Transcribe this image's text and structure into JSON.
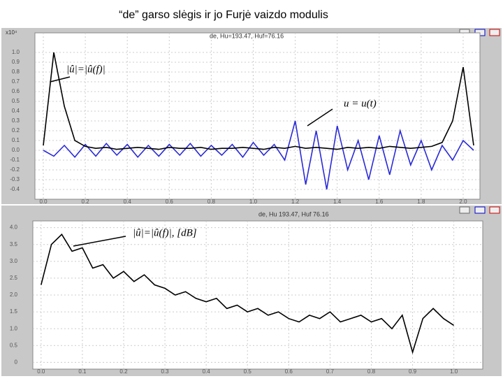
{
  "title": "“de” garso slėgis ir jo Furjė vaizdo modulis",
  "chart_data": [
    {
      "type": "line",
      "window_title": "de, Hu=193.47, Huf=76.16",
      "y_multiplier": "x10⁴",
      "annotations": [
        {
          "text": "|û|=|û(f)|"
        },
        {
          "text": "u = u(t)"
        }
      ],
      "grid": true,
      "xlim": [
        -0.04,
        2.08
      ],
      "ylim": [
        -0.5,
        1.2
      ],
      "xticks": [
        {
          "value": 0,
          "label": "0.0"
        },
        0.2,
        0.4,
        0.6,
        0.8,
        {
          "value": 1,
          "label": "1.0"
        },
        1.2,
        1.4,
        1.6,
        1.8,
        {
          "value": 2,
          "label": "2.0"
        }
      ],
      "yticks": [
        -0.4,
        -0.3,
        -0.2,
        -0.1,
        {
          "value": 0,
          "label": "0.0"
        },
        0.1,
        0.2,
        0.3,
        0.4,
        0.5,
        0.6,
        0.7,
        0.8,
        0.9,
        {
          "value": 1,
          "label": "1.0"
        }
      ],
      "x": [
        0,
        0.05,
        0.1,
        0.15,
        0.2,
        0.25,
        0.3,
        0.35,
        0.4,
        0.45,
        0.5,
        0.55,
        0.6,
        0.65,
        0.7,
        0.75,
        0.8,
        0.85,
        0.9,
        0.95,
        1,
        1.05,
        1.1,
        1.15,
        1.2,
        1.25,
        1.3,
        1.35,
        1.4,
        1.45,
        1.5,
        1.55,
        1.6,
        1.65,
        1.7,
        1.75,
        1.8,
        1.85,
        1.9,
        1.95,
        2,
        2.05
      ],
      "series": [
        {
          "color": "#2a2ad8",
          "values": [
            0.0,
            -0.06,
            0.05,
            -0.07,
            0.06,
            -0.06,
            0.07,
            -0.05,
            0.06,
            -0.07,
            0.05,
            -0.06,
            0.06,
            -0.05,
            0.07,
            -0.06,
            0.05,
            -0.05,
            0.06,
            -0.07,
            0.08,
            -0.05,
            0.06,
            -0.1,
            0.3,
            -0.35,
            0.2,
            -0.4,
            0.25,
            -0.2,
            0.1,
            -0.3,
            0.15,
            -0.25,
            0.2,
            -0.15,
            0.1,
            -0.2,
            0.05,
            -0.1,
            0.1,
            0.0
          ]
        },
        {
          "color": "#000000",
          "values": [
            0.05,
            1.0,
            0.45,
            0.1,
            0.04,
            0.02,
            0.03,
            0.01,
            0.02,
            0.03,
            0.02,
            0.01,
            0.03,
            0.02,
            0.02,
            0.03,
            0.01,
            0.02,
            0.02,
            0.03,
            0.02,
            0.01,
            0.03,
            0.02,
            0.04,
            0.02,
            0.03,
            0.02,
            0.01,
            0.03,
            0.02,
            0.03,
            0.02,
            0.04,
            0.03,
            0.02,
            0.03,
            0.04,
            0.08,
            0.3,
            0.85,
            0.05
          ]
        }
      ]
    },
    {
      "type": "line",
      "window_title": "de, Hu 193.47, Huf 76.16",
      "annotations": [
        {
          "text": "|û|=|û(f)|, [dB]"
        }
      ],
      "grid": true,
      "xlim": [
        -0.02,
        1.07
      ],
      "ylim": [
        -0.2,
        4.2
      ],
      "xticks": [
        {
          "value": 0,
          "label": "0.0"
        },
        0.1,
        0.2,
        0.3,
        0.4,
        0.5,
        0.6,
        0.7,
        0.8,
        0.9,
        {
          "value": 1,
          "label": "1.0"
        }
      ],
      "yticks": [
        0,
        0.5,
        {
          "value": 1,
          "label": "1.0"
        },
        1.5,
        {
          "value": 2,
          "label": "2.0"
        },
        2.5,
        {
          "value": 3,
          "label": "3.0"
        },
        3.5,
        {
          "value": 4,
          "label": "4.0"
        }
      ],
      "x": [
        0,
        0.025,
        0.05,
        0.075,
        0.1,
        0.125,
        0.15,
        0.175,
        0.2,
        0.225,
        0.25,
        0.275,
        0.3,
        0.325,
        0.35,
        0.375,
        0.4,
        0.425,
        0.45,
        0.475,
        0.5,
        0.525,
        0.55,
        0.575,
        0.6,
        0.625,
        0.65,
        0.675,
        0.7,
        0.725,
        0.75,
        0.775,
        0.8,
        0.825,
        0.85,
        0.875,
        0.9,
        0.925,
        0.95,
        0.975,
        1
      ],
      "series": [
        {
          "color": "#000000",
          "values": [
            2.3,
            3.5,
            3.8,
            3.3,
            3.4,
            2.8,
            2.9,
            2.5,
            2.7,
            2.4,
            2.6,
            2.3,
            2.2,
            2.0,
            2.1,
            1.9,
            1.8,
            1.9,
            1.6,
            1.7,
            1.5,
            1.6,
            1.4,
            1.5,
            1.3,
            1.2,
            1.4,
            1.3,
            1.5,
            1.2,
            1.3,
            1.4,
            1.2,
            1.3,
            1.0,
            1.4,
            0.3,
            1.3,
            1.6,
            1.3,
            1.1
          ]
        }
      ]
    }
  ]
}
